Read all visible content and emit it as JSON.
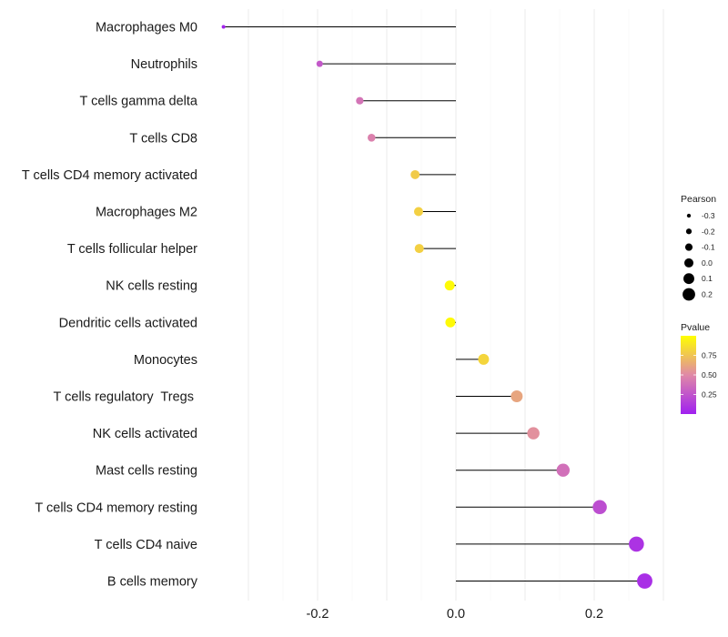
{
  "chart_data": {
    "type": "lollipop",
    "title": "",
    "xlabel": "",
    "ylabel": "",
    "xlim": [
      -0.36,
      0.3
    ],
    "x_ticks": [
      -0.2,
      0.0,
      0.2
    ],
    "x_tick_labels": [
      "-0.2",
      "0.0",
      "0.2"
    ],
    "grid": true,
    "categories": [
      "Macrophages M0",
      "Neutrophils",
      "T cells gamma delta",
      "T cells CD8",
      "T cells CD4 memory activated",
      "Macrophages M2",
      "T cells follicular helper",
      "NK cells resting",
      "Dendritic cells activated",
      "Monocytes",
      "T cells regulatory  Tregs ",
      "NK cells activated",
      "Mast cells resting",
      "T cells CD4 memory resting",
      "T cells CD4 naive",
      "B cells memory"
    ],
    "pearson": [
      -0.336,
      -0.197,
      -0.139,
      -0.122,
      -0.059,
      -0.054,
      -0.053,
      -0.009,
      -0.008,
      0.04,
      0.088,
      0.112,
      0.155,
      0.208,
      0.261,
      0.273
    ],
    "pvalue": [
      0.02,
      0.27,
      0.4,
      0.46,
      0.78,
      0.8,
      0.8,
      0.98,
      0.98,
      0.82,
      0.62,
      0.53,
      0.38,
      0.22,
      0.09,
      0.07
    ],
    "legend": {
      "size_title": "Pearson",
      "size_labels": [
        "-0.3",
        "-0.2",
        "-0.1",
        "0.0",
        "0.1",
        "0.2"
      ],
      "size_values": [
        -0.3,
        -0.2,
        -0.1,
        0.0,
        0.1,
        0.2
      ],
      "color_title": "Pvalue",
      "color_labels": [
        "0.75",
        "0.50",
        "0.25"
      ],
      "color_values": [
        0.75,
        0.5,
        0.25
      ],
      "color_range": [
        0.0,
        1.0
      ],
      "placement": "right"
    },
    "colors": {
      "low": "#a020f0",
      "mid": "#e089a7",
      "high": "#ffff00",
      "stem": "#000000",
      "grid": "#ebebeb"
    }
  }
}
